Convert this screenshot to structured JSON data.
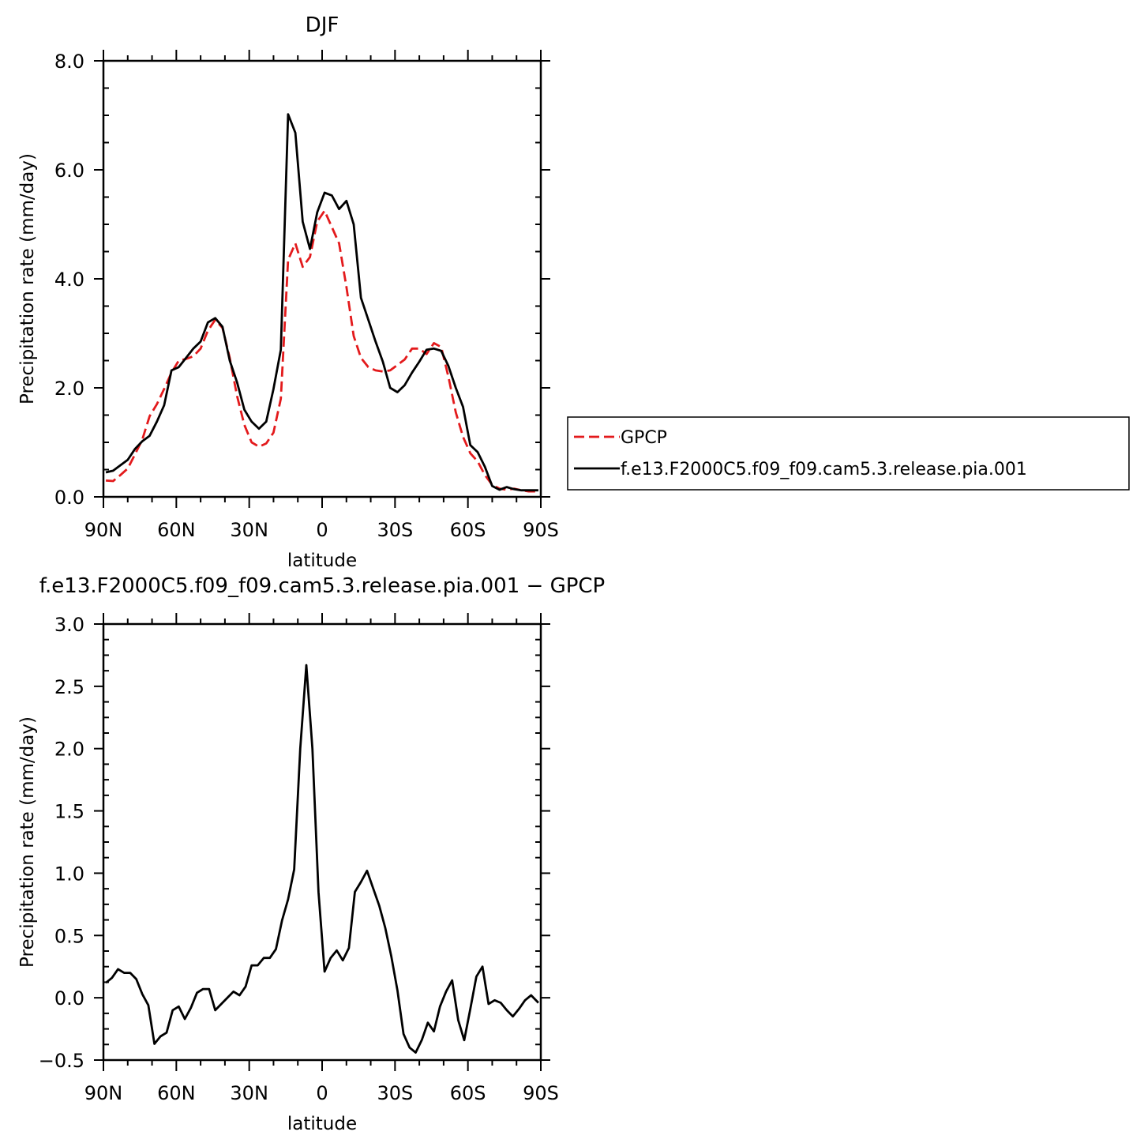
{
  "chart_data": [
    {
      "type": "line",
      "title": "DJF",
      "xlabel": "latitude",
      "ylabel": "Precipitation rate (mm/day)",
      "xlim": [
        90,
        -90
      ],
      "ylim": [
        0,
        8
      ],
      "x_ticks": [
        90,
        60,
        30,
        0,
        -30,
        -60,
        -90
      ],
      "x_tick_labels": [
        "90N",
        "60N",
        "30N",
        "0",
        "30S",
        "60S",
        "90S"
      ],
      "y_ticks": [
        0,
        2,
        4,
        6,
        8
      ],
      "y_tick_labels": [
        "0.0",
        "2.0",
        "4.0",
        "6.0",
        "8.0"
      ],
      "legend_position": "right",
      "series": [
        {
          "name": "GPCP",
          "color": "#e31a1c",
          "dash": "dashed",
          "x": [
            89,
            86,
            83,
            80,
            77,
            74,
            71,
            68,
            65,
            62,
            59,
            56,
            53,
            50,
            47,
            44,
            41,
            38,
            35,
            32,
            29,
            26,
            23,
            20,
            17,
            14,
            11,
            8,
            5,
            2,
            -1,
            -4,
            -7,
            -10,
            -13,
            -16,
            -19,
            -22,
            -25,
            -28,
            -31,
            -34,
            -37,
            -40,
            -43,
            -46,
            -49,
            -52,
            -55,
            -58,
            -61,
            -64,
            -67,
            -70,
            -73,
            -76,
            -79,
            -82,
            -85,
            -88,
            -89
          ],
          "y": [
            0.3,
            0.29,
            0.4,
            0.52,
            0.78,
            1.05,
            1.48,
            1.7,
            1.98,
            2.28,
            2.5,
            2.53,
            2.58,
            2.72,
            3.05,
            3.25,
            3.1,
            2.55,
            1.85,
            1.32,
            1.0,
            0.92,
            0.98,
            1.18,
            1.8,
            4.35,
            4.65,
            4.22,
            4.4,
            5.05,
            5.25,
            4.95,
            4.65,
            3.85,
            2.95,
            2.55,
            2.38,
            2.32,
            2.3,
            2.32,
            2.42,
            2.52,
            2.72,
            2.72,
            2.62,
            2.82,
            2.75,
            2.2,
            1.55,
            1.1,
            0.8,
            0.65,
            0.4,
            0.22,
            0.15,
            0.13,
            0.15,
            0.12,
            0.1,
            0.1,
            0.1
          ]
        },
        {
          "name": "f.e13.F2000C5.f09_f09.cam5.3.release.pia.001",
          "color": "#000000",
          "dash": "solid",
          "x": [
            89,
            86,
            83,
            80,
            77,
            74,
            71,
            68,
            65,
            62,
            59,
            56,
            53,
            50,
            47,
            44,
            41,
            38,
            35,
            32,
            29,
            26,
            23,
            20,
            17,
            14,
            11,
            8,
            5,
            2,
            -1,
            -4,
            -7,
            -10,
            -13,
            -16,
            -19,
            -22,
            -25,
            -28,
            -31,
            -34,
            -37,
            -40,
            -43,
            -46,
            -49,
            -52,
            -55,
            -58,
            -61,
            -64,
            -67,
            -70,
            -73,
            -76,
            -79,
            -82,
            -85,
            -88,
            -89
          ],
          "y": [
            0.45,
            0.48,
            0.58,
            0.68,
            0.88,
            1.02,
            1.12,
            1.38,
            1.68,
            2.32,
            2.38,
            2.55,
            2.72,
            2.85,
            3.2,
            3.28,
            3.12,
            2.5,
            2.1,
            1.6,
            1.38,
            1.25,
            1.38,
            1.98,
            2.7,
            7.02,
            6.68,
            5.05,
            4.55,
            5.22,
            5.58,
            5.53,
            5.28,
            5.43,
            5.0,
            3.65,
            3.25,
            2.85,
            2.48,
            2.0,
            1.92,
            2.05,
            2.28,
            2.48,
            2.7,
            2.72,
            2.68,
            2.4,
            2.0,
            1.65,
            0.95,
            0.82,
            0.55,
            0.2,
            0.13,
            0.18,
            0.14,
            0.12,
            0.12,
            0.12,
            0.12
          ]
        }
      ]
    },
    {
      "type": "line",
      "title": "f.e13.F2000C5.f09_f09.cam5.3.release.pia.001 − GPCP",
      "xlabel": "latitude",
      "ylabel": "Precipitation rate (mm/day)",
      "xlim": [
        90,
        -90
      ],
      "ylim": [
        -0.5,
        3.0
      ],
      "x_ticks": [
        90,
        60,
        30,
        0,
        -30,
        -60,
        -90
      ],
      "x_tick_labels": [
        "90N",
        "60N",
        "30N",
        "0",
        "30S",
        "60S",
        "90S"
      ],
      "y_ticks": [
        -0.5,
        0,
        0.5,
        1.0,
        1.5,
        2.0,
        2.5,
        3.0
      ],
      "y_tick_labels": [
        "−0.5",
        "0.0",
        "0.5",
        "1.0",
        "1.5",
        "2.0",
        "2.5",
        "3.0"
      ],
      "series": [
        {
          "color": "#000000",
          "dash": "solid",
          "x": [
            89,
            86.5,
            84,
            81.5,
            79,
            76.5,
            74,
            71.5,
            69,
            66.5,
            64,
            61.5,
            59,
            56.5,
            54,
            51.5,
            49,
            46.5,
            44,
            41.5,
            39,
            36.5,
            34,
            31.5,
            29,
            26.5,
            24,
            21.5,
            19,
            16.5,
            14,
            11.5,
            9,
            6.5,
            4,
            1.5,
            -1,
            -3.5,
            -6,
            -8.5,
            -11,
            -13.5,
            -16,
            -18.5,
            -21,
            -23.5,
            -26,
            -28.5,
            -31,
            -33.5,
            -36,
            -38.5,
            -41,
            -43.5,
            -46,
            -48.5,
            -51,
            -53.5,
            -56,
            -58.5,
            -61,
            -63.5,
            -66,
            -68.5,
            -71,
            -73.5,
            -76,
            -78.5,
            -81,
            -83.5,
            -86,
            -88.5,
            -89
          ],
          "y": [
            0.12,
            0.16,
            0.23,
            0.2,
            0.2,
            0.15,
            0.03,
            -0.06,
            -0.37,
            -0.31,
            -0.28,
            -0.1,
            -0.07,
            -0.17,
            -0.08,
            0.04,
            0.07,
            0.07,
            -0.1,
            -0.05,
            0.0,
            0.05,
            0.02,
            0.09,
            0.26,
            0.26,
            0.32,
            0.32,
            0.39,
            0.62,
            0.79,
            1.03,
            2.0,
            2.67,
            2.0,
            0.85,
            0.21,
            0.32,
            0.38,
            0.3,
            0.4,
            0.85,
            0.93,
            1.02,
            0.88,
            0.74,
            0.56,
            0.33,
            0.06,
            -0.29,
            -0.4,
            -0.44,
            -0.34,
            -0.2,
            -0.27,
            -0.07,
            0.05,
            0.14,
            -0.18,
            -0.34,
            -0.09,
            0.17,
            0.25,
            -0.05,
            -0.02,
            -0.04,
            -0.1,
            -0.15,
            -0.09,
            -0.02,
            0.02,
            -0.03,
            -0.04
          ]
        }
      ]
    }
  ]
}
